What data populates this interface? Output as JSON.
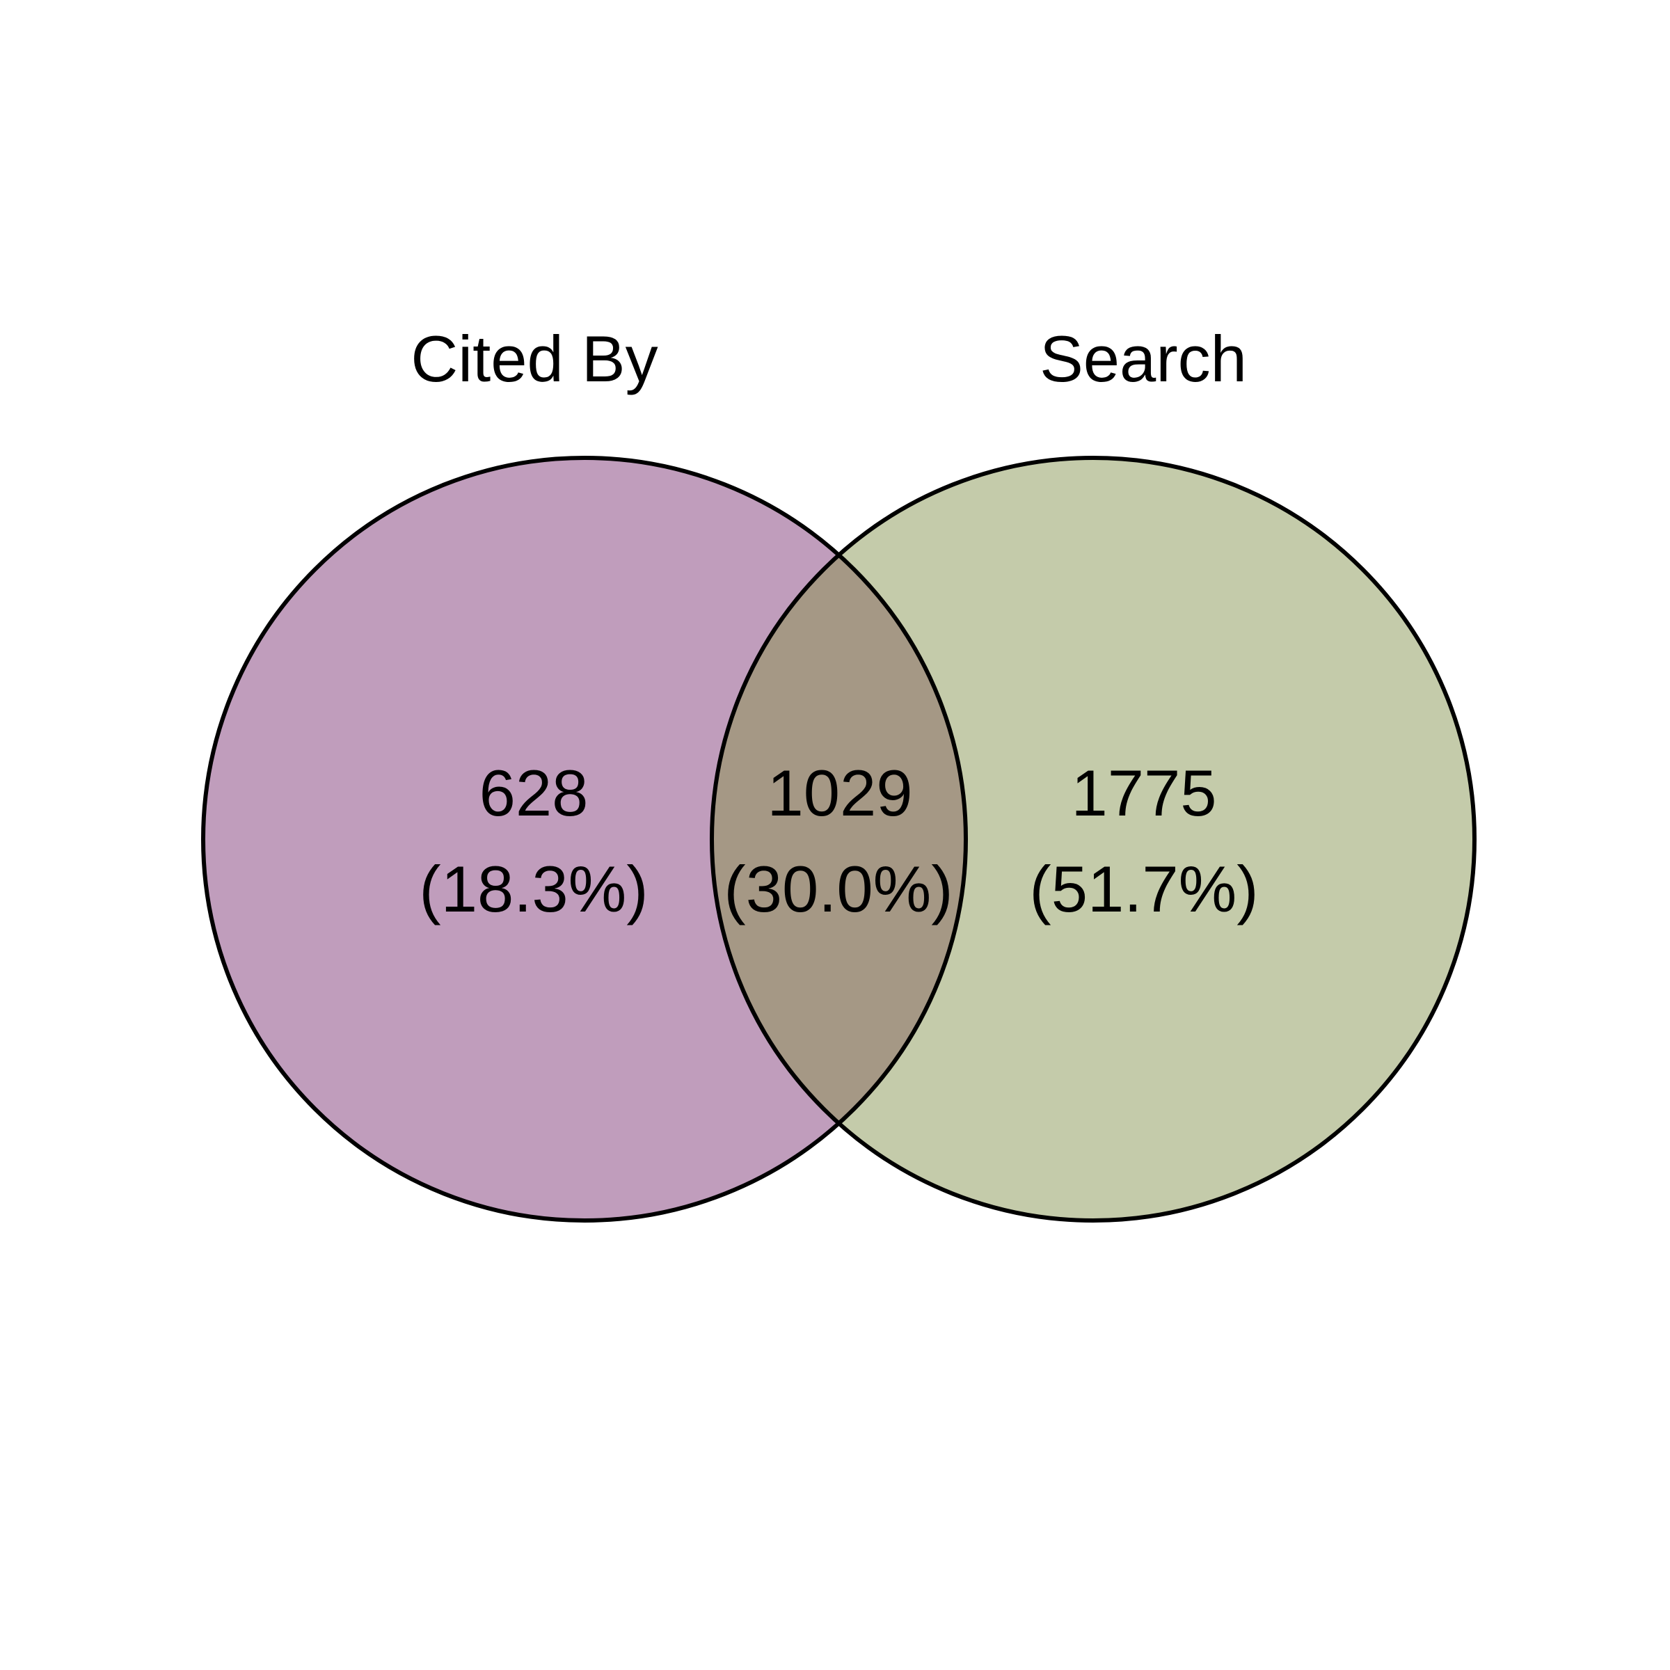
{
  "diagram": {
    "type": "venn",
    "sets": [
      {
        "name": "Cited By",
        "color": "#c09dbc"
      },
      {
        "name": "Search",
        "color": "#c4cbaa"
      }
    ],
    "regions": {
      "cited_only": {
        "count": "628",
        "percent": "(18.3%)",
        "color": "#c09dbc"
      },
      "both": {
        "count": "1029",
        "percent": "(30.0%)",
        "color": "#a59885"
      },
      "search_only": {
        "count": "1775",
        "percent": "(51.7%)",
        "color": "#c4cbaa"
      }
    },
    "outline_color": "#000000"
  }
}
